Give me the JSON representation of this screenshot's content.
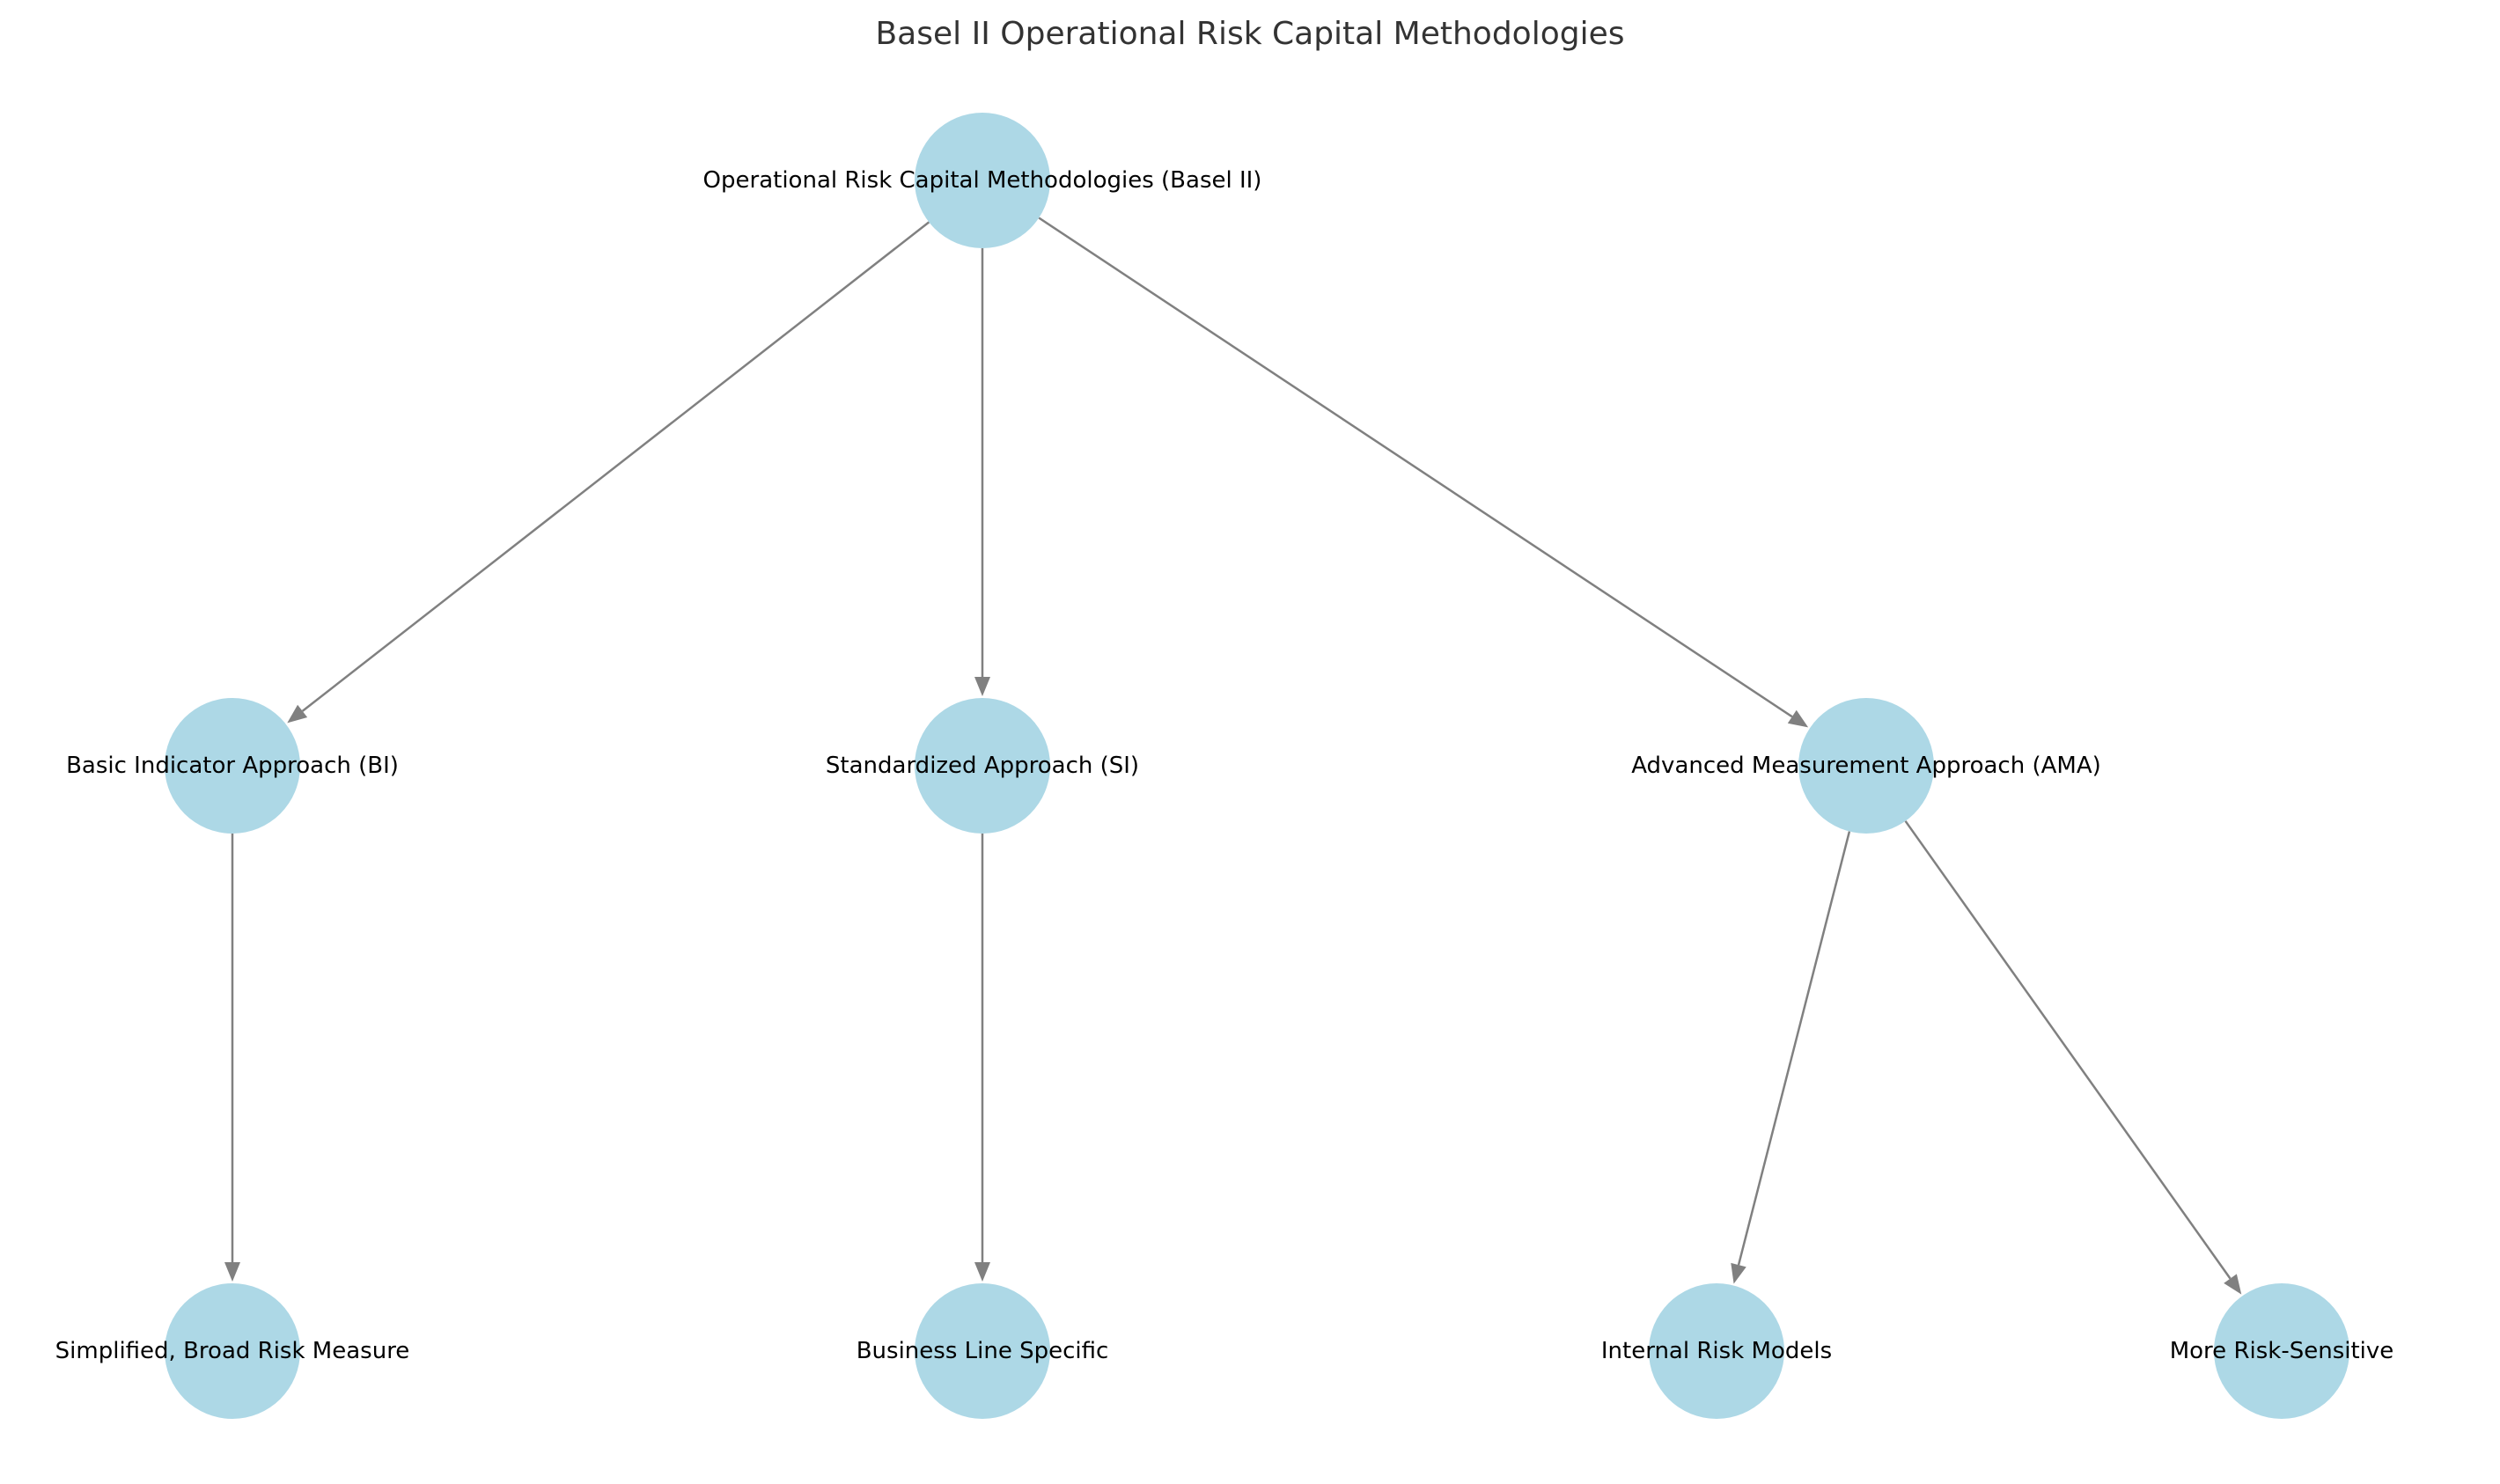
{
  "title": "Basel II Operational Risk Capital Methodologies",
  "colors": {
    "node_fill": "#add8e6",
    "edge": "#808080",
    "title": "#333333",
    "label": "#000000"
  },
  "nodes": [
    {
      "id": "root",
      "label": "Operational Risk Capital Methodologies (Basel II)"
    },
    {
      "id": "bi",
      "label": "Basic Indicator Approach (BI)"
    },
    {
      "id": "si",
      "label": "Standardized Approach (SI)"
    },
    {
      "id": "ama",
      "label": "Advanced Measurement Approach (AMA)"
    },
    {
      "id": "simplified",
      "label": "Simplified, Broad Risk Measure"
    },
    {
      "id": "business",
      "label": "Business Line Specific"
    },
    {
      "id": "internal",
      "label": "Internal Risk Models"
    },
    {
      "id": "sensitive",
      "label": "More Risk-Sensitive"
    }
  ],
  "edges": [
    {
      "from": "root",
      "to": "bi"
    },
    {
      "from": "root",
      "to": "si"
    },
    {
      "from": "root",
      "to": "ama"
    },
    {
      "from": "bi",
      "to": "simplified"
    },
    {
      "from": "si",
      "to": "business"
    },
    {
      "from": "ama",
      "to": "internal"
    },
    {
      "from": "ama",
      "to": "sensitive"
    }
  ]
}
